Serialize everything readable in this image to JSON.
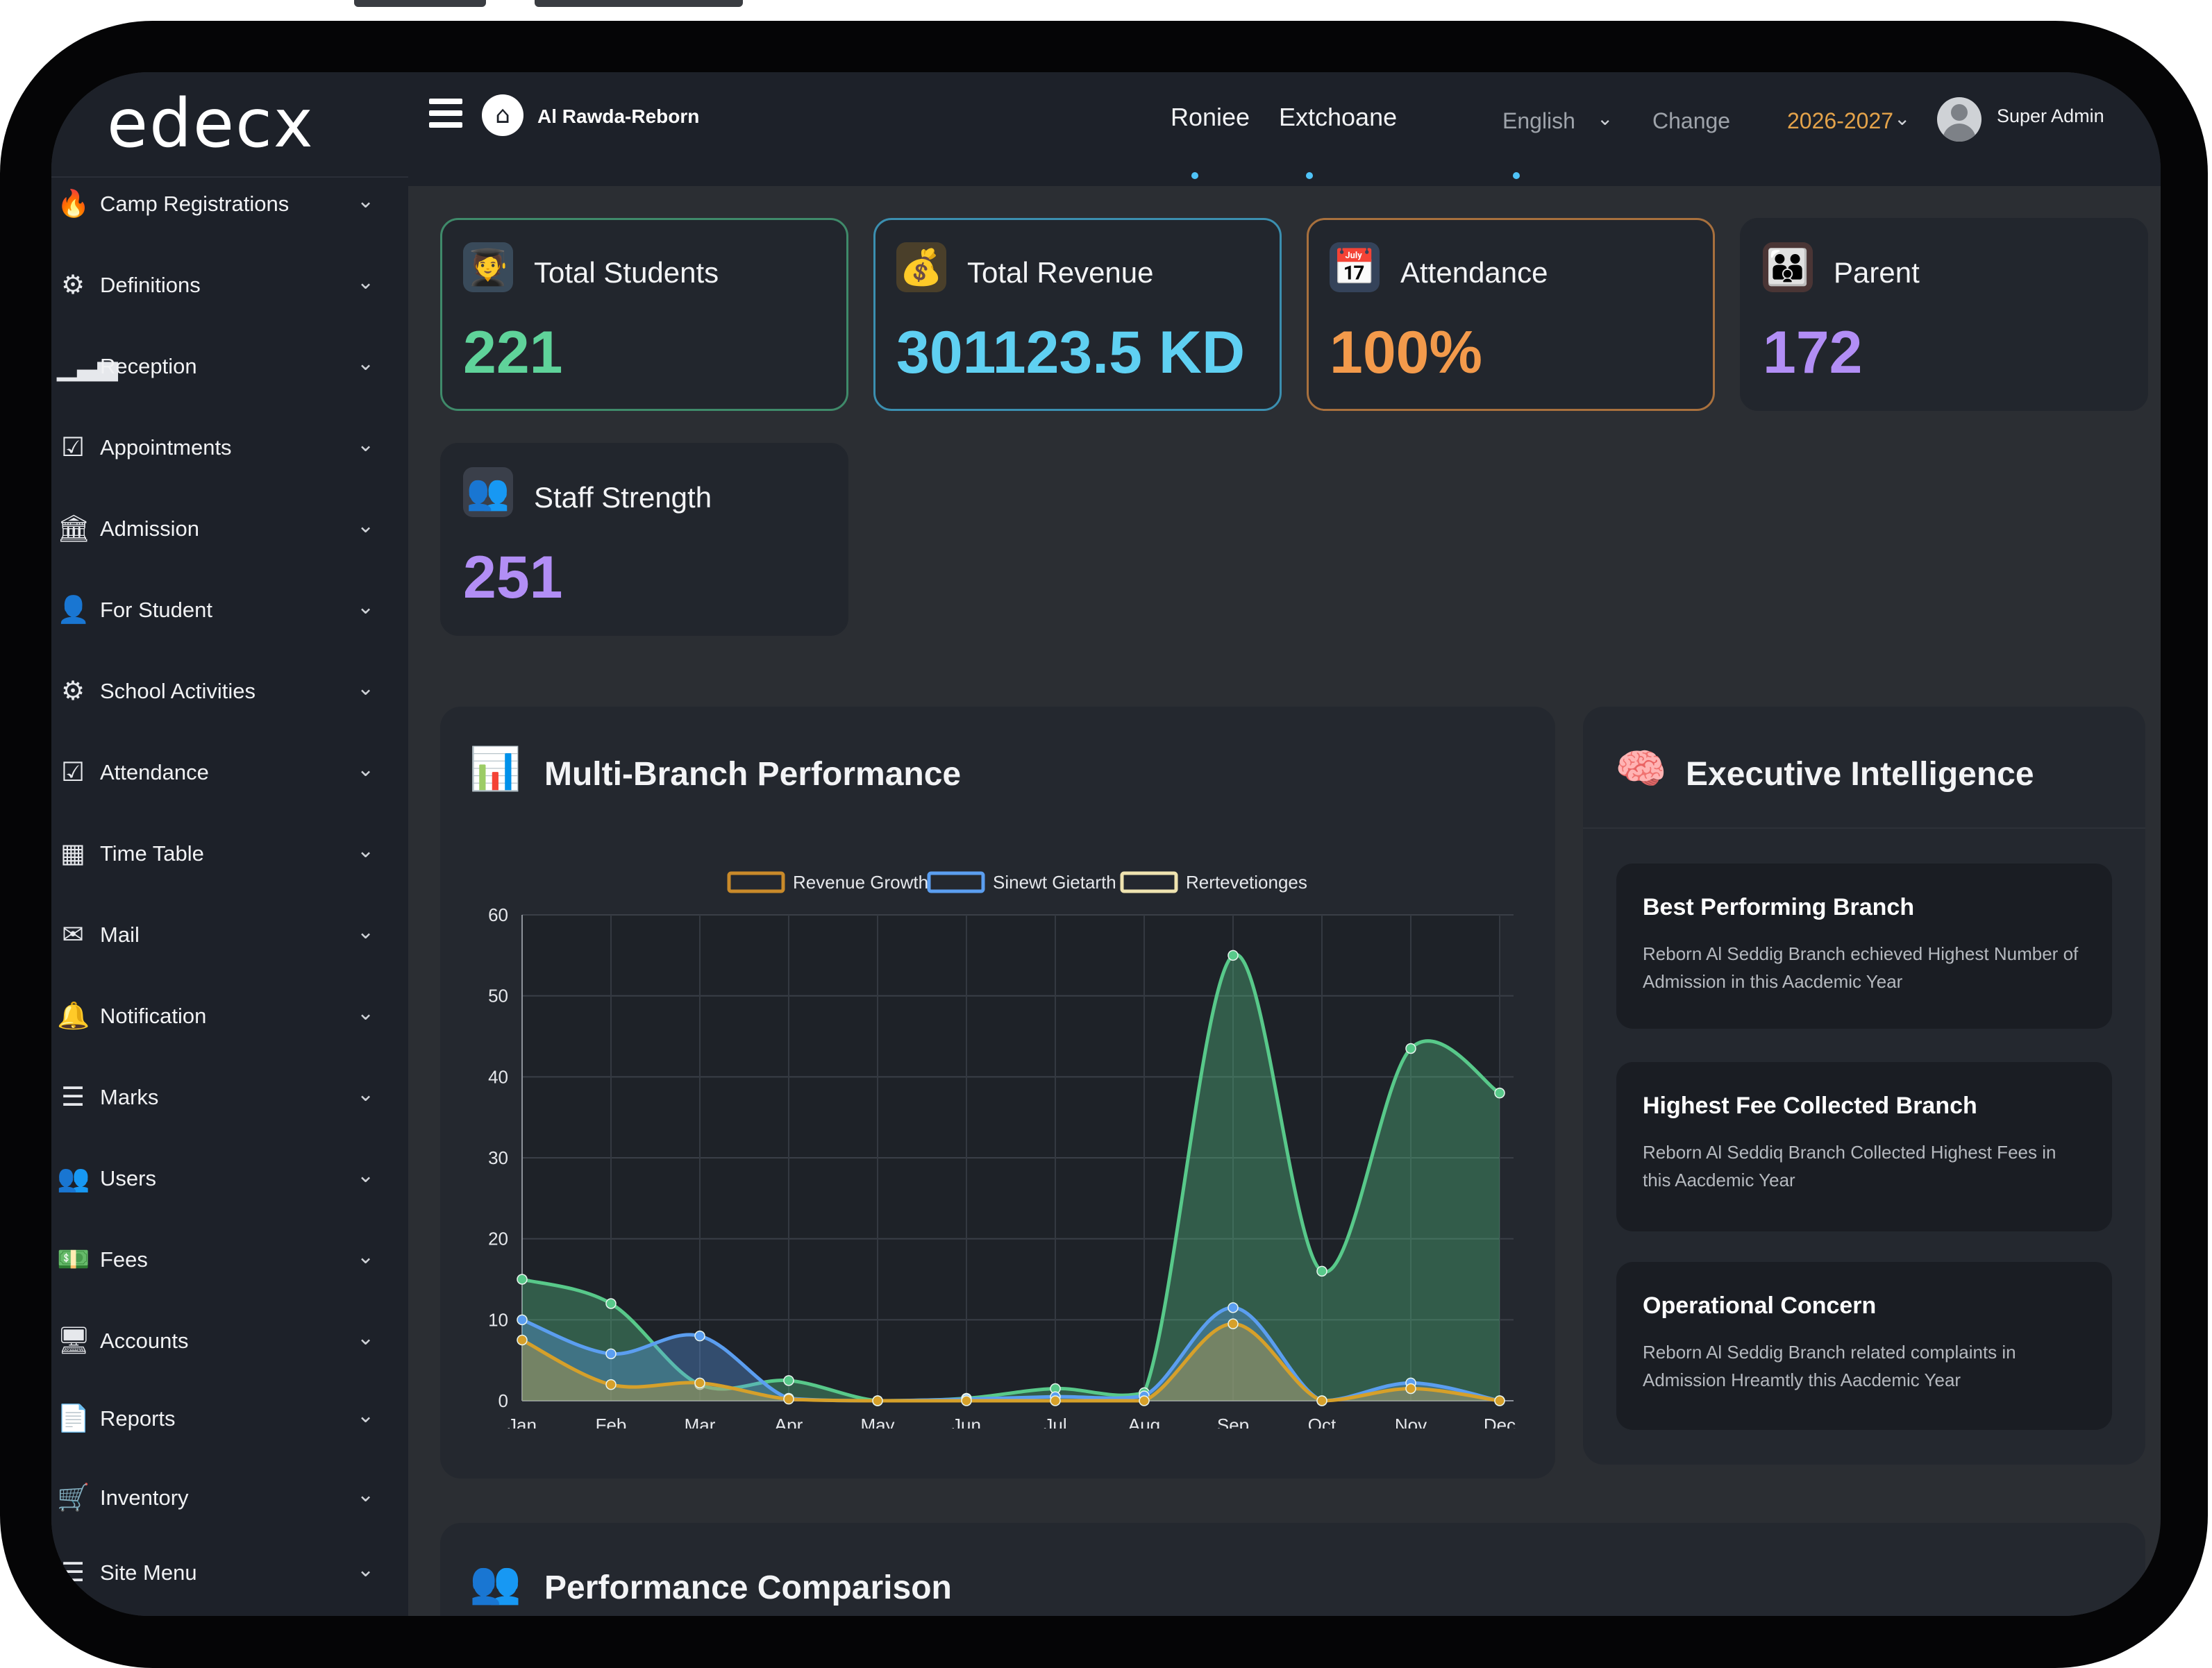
{
  "brand": {
    "logo_text": "edecx"
  },
  "header": {
    "school_name": "Al Rawda-Reborn",
    "tabs": [
      {
        "label": "Roniee"
      },
      {
        "label": "Extchoane"
      }
    ],
    "language": "English",
    "change_label": "Change",
    "academic_year": "2026-2027",
    "user_name": "Super Admin"
  },
  "sidebar": {
    "items": [
      {
        "label": "Camp Registrations",
        "icon": "flame-icon"
      },
      {
        "label": "Definitions",
        "icon": "gears-icon"
      },
      {
        "label": "Reception",
        "icon": "signal-bars-icon"
      },
      {
        "label": "Appointments",
        "icon": "calendar-check-icon"
      },
      {
        "label": "Admission",
        "icon": "institution-icon"
      },
      {
        "label": "For Student",
        "icon": "user-icon"
      },
      {
        "label": "School Activities",
        "icon": "gear-icon"
      },
      {
        "label": "Attendance",
        "icon": "checkbox-icon"
      },
      {
        "label": "Time Table",
        "icon": "calendar-grid-icon"
      },
      {
        "label": "Mail",
        "icon": "envelope-icon"
      },
      {
        "label": "Notification",
        "icon": "bell-icon"
      },
      {
        "label": "Marks",
        "icon": "list-icon"
      },
      {
        "label": "Users",
        "icon": "users-icon"
      },
      {
        "label": "Fees",
        "icon": "money-icon"
      },
      {
        "label": "Accounts",
        "icon": "monitor-icon"
      },
      {
        "label": "Reports",
        "icon": "document-icon"
      },
      {
        "label": "Inventory",
        "icon": "cart-icon"
      },
      {
        "label": "Site Menu",
        "icon": "menu-icon"
      }
    ]
  },
  "stats": [
    {
      "title": "Total Students",
      "value": "221",
      "color": "#5fd39a",
      "border": "#3f8a6a",
      "icon": "student-icon"
    },
    {
      "title": "Total Revenue",
      "value": "301123.5 KD",
      "color": "#5fd0f2",
      "border": "#3b8fb0",
      "icon": "revenue-icon"
    },
    {
      "title": "Attendance",
      "value": "100%",
      "color": "#f39a4b",
      "border": "#a8703d",
      "icon": "attendance-icon"
    },
    {
      "title": "Parent",
      "value": "172",
      "color": "#b28ef5",
      "border": "#22262d",
      "icon": "parent-icon"
    },
    {
      "title": "Staff Strength",
      "value": "251",
      "color": "#b28ef5",
      "border": "#22262d",
      "icon": "staff-icon"
    }
  ],
  "performance": {
    "title": "Multi-Branch Performance"
  },
  "chart_data": {
    "type": "area",
    "categories": [
      "Jan",
      "Feb",
      "Mar",
      "Apr",
      "May",
      "Jun",
      "Jul",
      "Aug",
      "Sep",
      "Oct",
      "Nov",
      "Dec"
    ],
    "ylim": [
      0,
      60
    ],
    "yticks": [
      0,
      10,
      20,
      30,
      40,
      50,
      60
    ],
    "legend_position": "top",
    "grid": true,
    "series": [
      {
        "name": "Revenue Growth",
        "color": "#d6a02a",
        "legend_color": "#c98a2a",
        "values": [
          7.5,
          2,
          2.2,
          0.2,
          0,
          0,
          0,
          0,
          9.5,
          0,
          1.5,
          0
        ]
      },
      {
        "name": "Sinewt Gietarth",
        "color": "#5b9ef0",
        "legend_color": "#5b9ef0",
        "values": [
          10,
          5.8,
          8,
          0.3,
          0,
          0.2,
          0.5,
          0.6,
          11.5,
          0,
          2.2,
          0
        ]
      },
      {
        "name": "Rertevetionges",
        "color": "#58c98a",
        "legend_color": "#efe3b0",
        "values": [
          15,
          12,
          2,
          2.5,
          0,
          0.3,
          1.5,
          1,
          55,
          16,
          43.5,
          38
        ]
      }
    ]
  },
  "intelligence": {
    "title": "Executive Intelligence",
    "items": [
      {
        "title": "Best Performing Branch",
        "body": "Reborn Al Seddig Branch echieved Highest Number of Admission in this Aacdemic Year"
      },
      {
        "title": "Highest Fee Collected Branch",
        "body": "Reborn Al Seddiq Branch Collected Highest Fees in this Aacdemic Year"
      },
      {
        "title": "Operational Concern",
        "body": "Reborn Al Seddig Branch related complaints in Admission Hreamtly this Aacdemic Year"
      }
    ]
  },
  "comparison": {
    "title": "Performance Comparison"
  }
}
